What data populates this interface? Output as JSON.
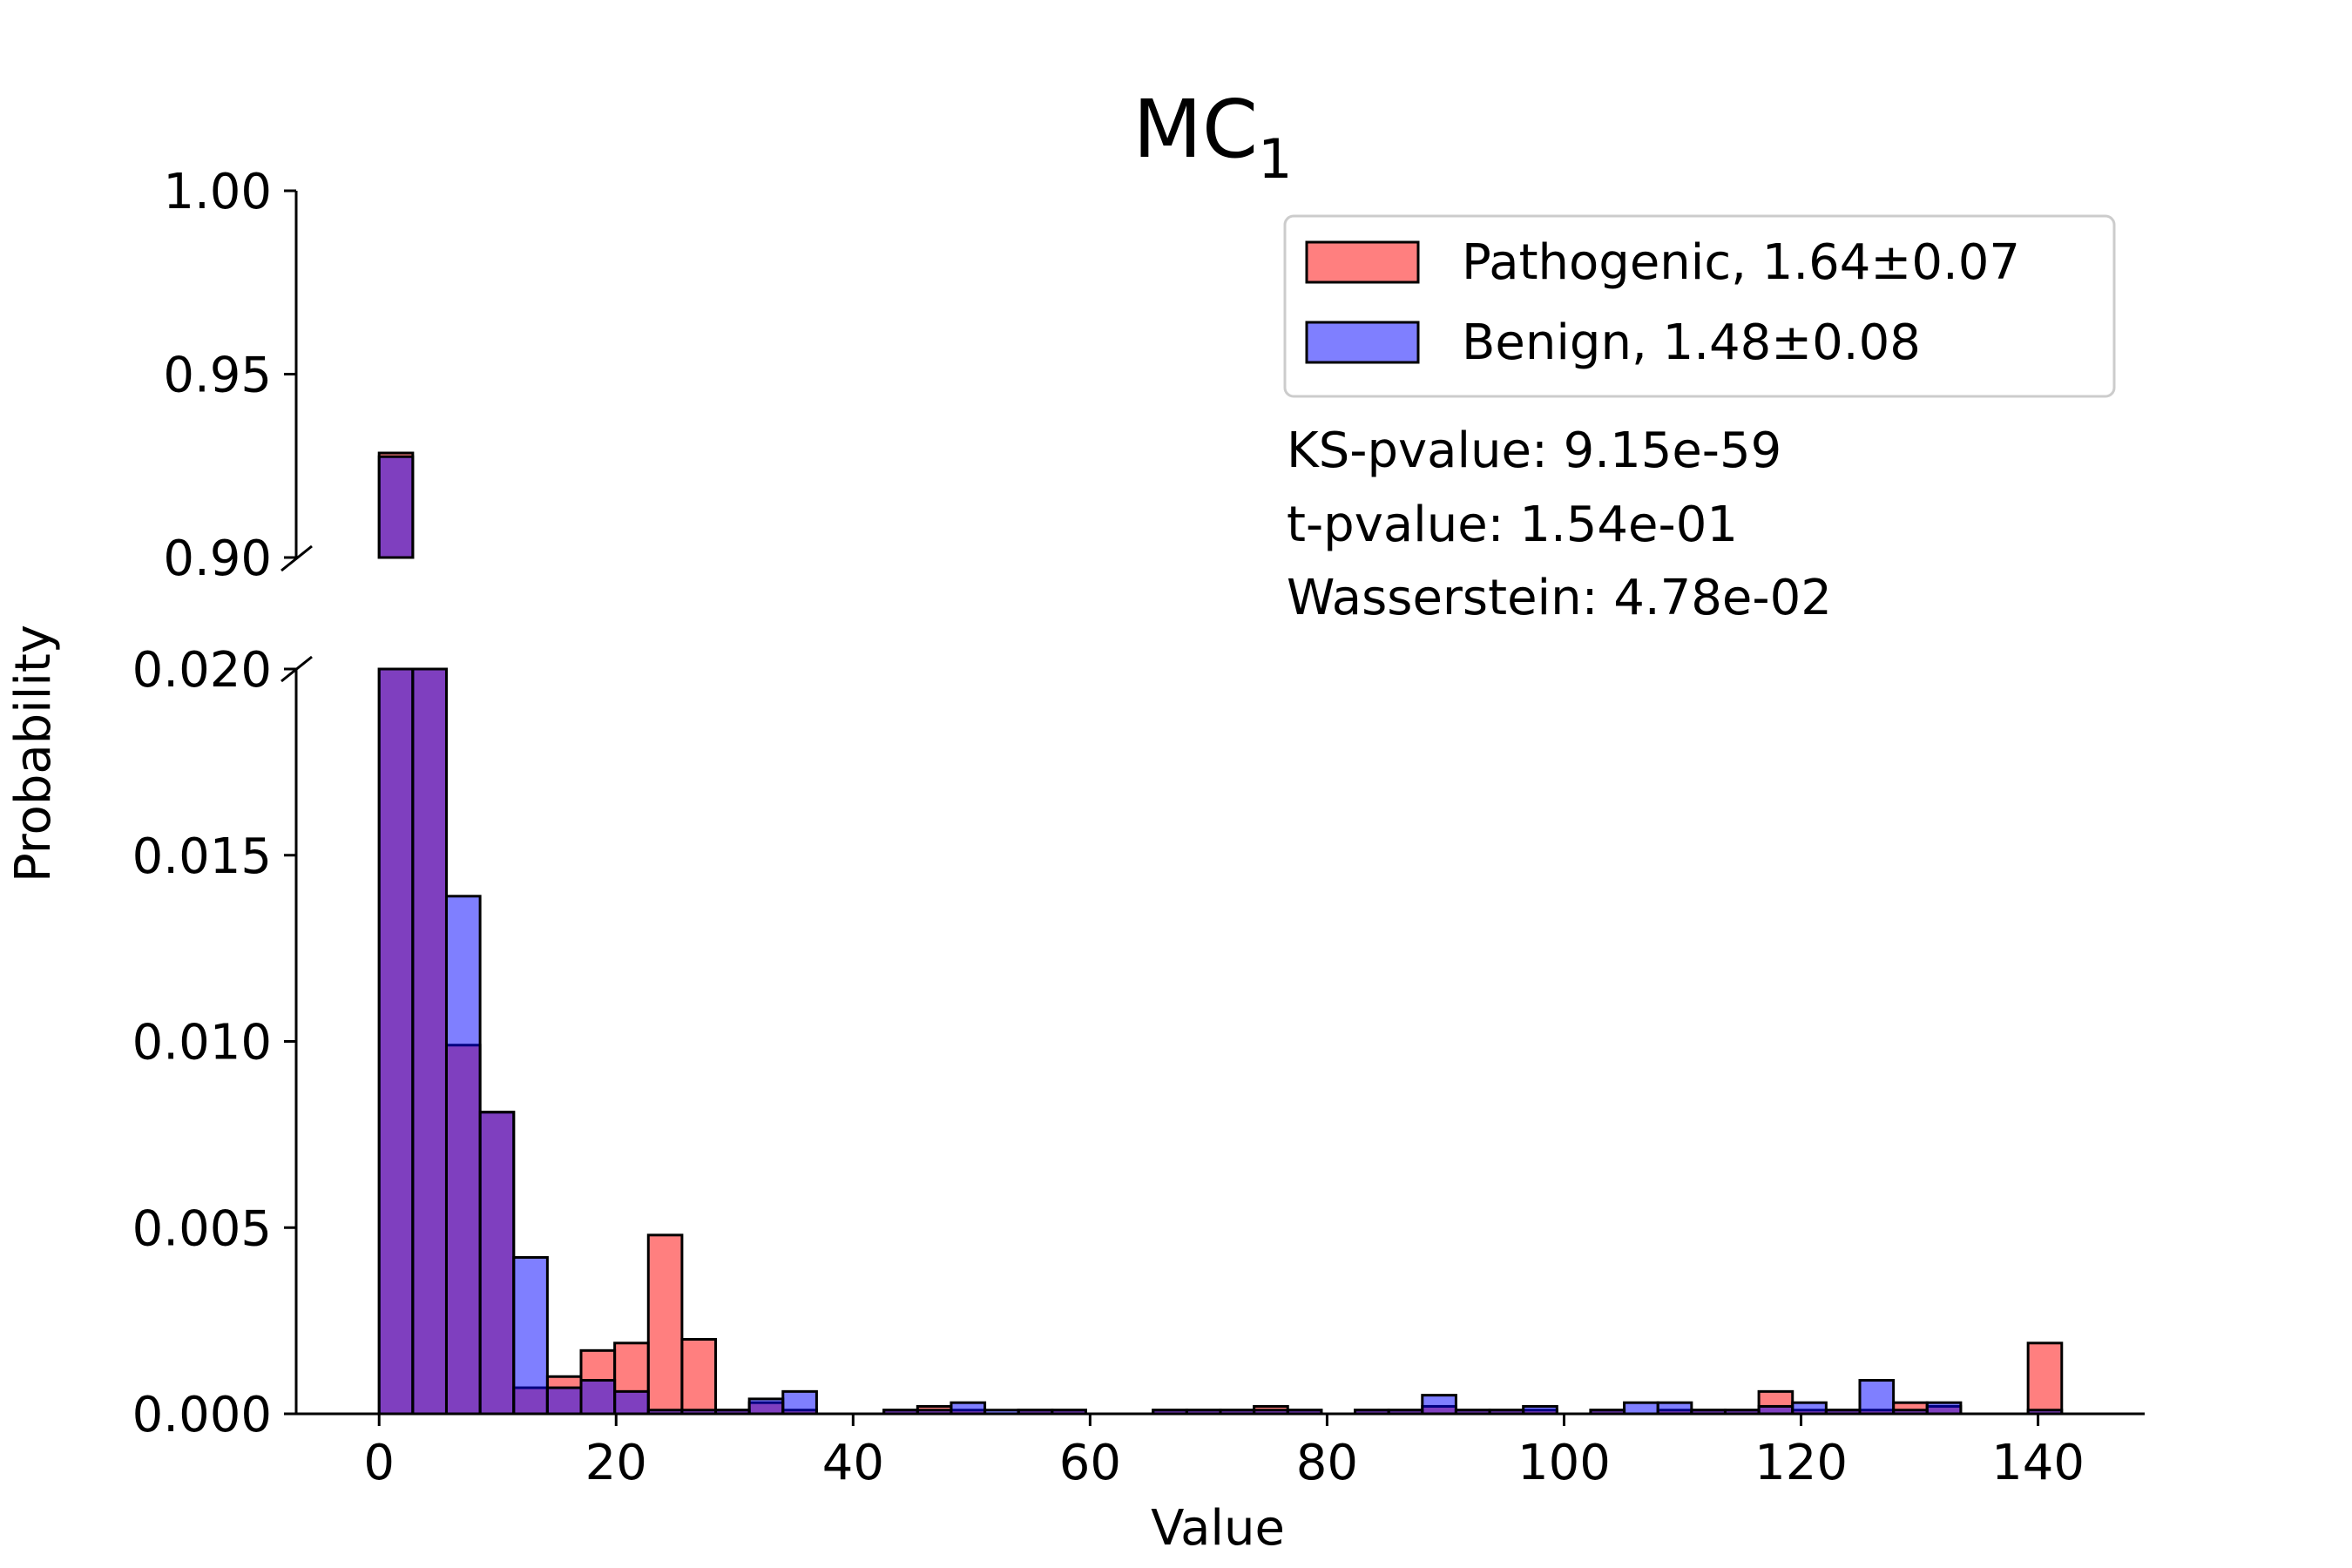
{
  "chart_data": {
    "type": "bar",
    "title": "MC",
    "title_subscript": "1",
    "xlabel": "Value",
    "ylabel": "Probability",
    "xlim": [
      -7,
      149
    ],
    "ylim_lower": [
      0,
      0.02
    ],
    "ylim_upper": [
      0.9,
      1.0
    ],
    "broken_axis": true,
    "grid": false,
    "legend_position": "top-right",
    "x_ticks": [
      0,
      20,
      40,
      60,
      80,
      100,
      120,
      140
    ],
    "y_ticks_lower": [
      0,
      0.005,
      0.01,
      0.015,
      0.02
    ],
    "y_ticks_upper": [
      0.9,
      0.95,
      1.0
    ],
    "x_tick_labels": [
      "0",
      "20",
      "40",
      "60",
      "80",
      "100",
      "120",
      "140"
    ],
    "y_tick_labels_lower": [
      "0.000",
      "0.005",
      "0.010",
      "0.015",
      "0.020"
    ],
    "y_tick_labels_upper": [
      "0.90",
      "0.95",
      "1.00"
    ],
    "bin_width": 2.84,
    "bin_edges_start": 0,
    "series": [
      {
        "name": "Pathogenic, 1.64±0.07",
        "color": "#ff7777",
        "values": [
          0.9285,
          0.0225,
          0.0099,
          0.0081,
          0.0007,
          0.001,
          0.0017,
          0.0019,
          0.0048,
          0.002,
          0.0001,
          0.0003,
          0.0001,
          0,
          0,
          0.0001,
          0.0002,
          0.0001,
          0,
          0.0001,
          0.0001,
          0,
          0,
          0.0001,
          0.0001,
          0.0001,
          0.0002,
          0.0001,
          0,
          0.0001,
          0.0001,
          0.0002,
          0.0001,
          0.0001,
          0.0001,
          0,
          0.0001,
          0,
          0.0001,
          0.0001,
          0.0001,
          0.0006,
          0.0001,
          0.0001,
          0.0001,
          0.0003,
          0.0002,
          0,
          0,
          0.0019
        ]
      },
      {
        "name": "Benign, 1.48±0.08",
        "color": "#7777ff",
        "values": [
          0.9275,
          0.021,
          0.0139,
          0.0081,
          0.0042,
          0.0007,
          0.0009,
          0.0006,
          0.0001,
          0.0001,
          0.0001,
          0.0004,
          0.0006,
          0,
          0,
          0.0001,
          0.0001,
          0.0003,
          0.0001,
          0.0001,
          0.0001,
          0,
          0,
          0.0001,
          0.0001,
          0.0001,
          0.0001,
          0.0001,
          0,
          0.0001,
          0.0001,
          0.0005,
          0.0001,
          0.0001,
          0.0002,
          0,
          0.0001,
          0.0003,
          0.0003,
          0.0001,
          0.0001,
          0.0002,
          0.0003,
          0.0001,
          0.0009,
          0.0001,
          0.0003,
          0,
          0,
          0.0001
        ]
      }
    ],
    "annotations": [
      "KS-pvalue: 9.15e-59",
      "t-pvalue: 1.54e-01",
      "Wasserstein: 4.78e-02"
    ]
  }
}
